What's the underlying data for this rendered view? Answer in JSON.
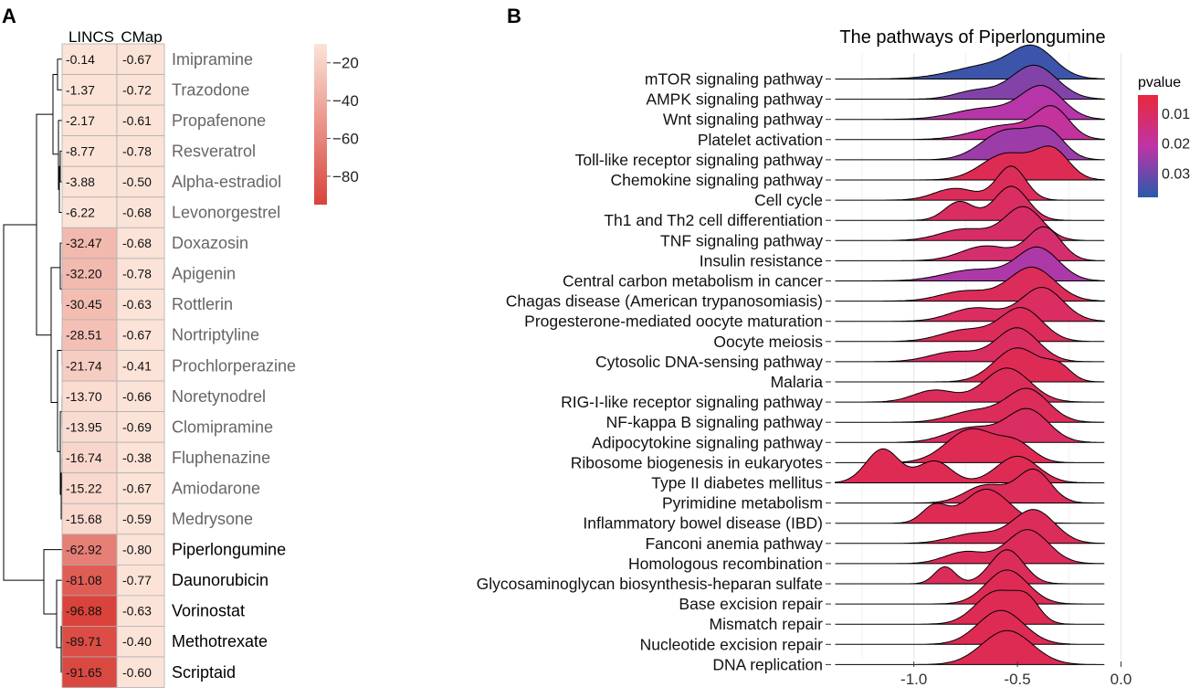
{
  "figure": {
    "panel_a_letter": "A",
    "panel_b_letter": "B",
    "colors": {
      "heat_low": "#fbe3d8",
      "heat_high": "#d9433b",
      "cell_border": "#b0b0b0",
      "drug_label_gray": "#666666",
      "drug_label_black": "#000000",
      "ridge_outline": "#000000",
      "grid": "#e8e8e8",
      "pval_low": "#e8293a",
      "pval_mid": "#bf33a8",
      "pval_high": "#2a5aaa"
    }
  },
  "chart_data": [
    {
      "type": "heatmap",
      "panel": "A",
      "columns": [
        "LINCS",
        "CMap"
      ],
      "rows": [
        "Imipramine",
        "Trazodone",
        "Propafenone",
        "Resveratrol",
        "Alpha-estradiol",
        "Levonorgestrel",
        "Doxazosin",
        "Apigenin",
        "Rottlerin",
        "Nortriptyline",
        "Prochlorperazine",
        "Noretynodrel",
        "Clomipramine",
        "Fluphenazine",
        "Amiodarone",
        "Medrysone",
        "Piperlongumine",
        "Daunorubicin",
        "Vorinostat",
        "Methotrexate",
        "Scriptaid"
      ],
      "values": [
        [
          -0.14,
          -0.67
        ],
        [
          -1.37,
          -0.72
        ],
        [
          -2.17,
          -0.61
        ],
        [
          -8.77,
          -0.78
        ],
        [
          -3.88,
          -0.5
        ],
        [
          -6.22,
          -0.68
        ],
        [
          -32.47,
          -0.68
        ],
        [
          -32.2,
          -0.78
        ],
        [
          -30.45,
          -0.63
        ],
        [
          -28.51,
          -0.67
        ],
        [
          -21.74,
          -0.41
        ],
        [
          -13.7,
          -0.66
        ],
        [
          -13.95,
          -0.69
        ],
        [
          -16.74,
          -0.38
        ],
        [
          -15.22,
          -0.67
        ],
        [
          -15.68,
          -0.59
        ],
        [
          -62.92,
          -0.8
        ],
        [
          -81.08,
          -0.77
        ],
        [
          -96.88,
          -0.63
        ],
        [
          -89.71,
          -0.4
        ],
        [
          -91.65,
          -0.6
        ]
      ],
      "value_labels": [
        [
          "-0.14",
          "-0.67"
        ],
        [
          "-1.37",
          "-0.72"
        ],
        [
          "-2.17",
          "-0.61"
        ],
        [
          "-8.77",
          "-0.78"
        ],
        [
          "-3.88",
          "-0.50"
        ],
        [
          "-6.22",
          "-0.68"
        ],
        [
          "-32.47",
          "-0.68"
        ],
        [
          "-32.20",
          "-0.78"
        ],
        [
          "-30.45",
          "-0.63"
        ],
        [
          "-28.51",
          "-0.67"
        ],
        [
          "-21.74",
          "-0.41"
        ],
        [
          "-13.70",
          "-0.66"
        ],
        [
          "-13.95",
          "-0.69"
        ],
        [
          "-16.74",
          "-0.38"
        ],
        [
          "-15.22",
          "-0.67"
        ],
        [
          "-15.68",
          "-0.59"
        ],
        [
          "-62.92",
          "-0.80"
        ],
        [
          "-81.08",
          "-0.77"
        ],
        [
          "-96.88",
          "-0.63"
        ],
        [
          "-89.71",
          "-0.40"
        ],
        [
          "-91.65",
          "-0.60"
        ]
      ],
      "highlighted_rows": [
        "Piperlongumine",
        "Daunorubicin",
        "Vorinostat",
        "Methotrexate",
        "Scriptaid"
      ],
      "colorbar": {
        "range": [
          -95,
          -10
        ],
        "ticks": [
          -20,
          -40,
          -60,
          -80
        ],
        "tick_labels": [
          "−20",
          "−40",
          "−60",
          "−80"
        ]
      },
      "dendrogram": "rows clustered (left side)"
    },
    {
      "type": "ridgeline",
      "panel": "B",
      "title": "The pathways of Piperlongumine",
      "xlim": [
        -1.4,
        0.02
      ],
      "xticks": [
        -1.0,
        -0.5,
        0.0
      ],
      "xtick_labels": [
        "-1.0",
        "-0.5",
        "0.0"
      ],
      "legend": {
        "title": "pvalue",
        "range": [
          0.004,
          0.038
        ],
        "ticks": [
          0.01,
          0.02,
          0.03
        ],
        "tick_labels": [
          "0.01",
          "0.02",
          "0.03"
        ],
        "position": "right"
      },
      "series": [
        {
          "name": "mTOR signaling pathway",
          "pvalue": 0.036,
          "peaks": [
            [
              -0.62,
              0.55,
              0.18
            ],
            [
              -0.42,
              1.0,
              0.1
            ]
          ]
        },
        {
          "name": "AMPK signaling pathway",
          "pvalue": 0.028,
          "peaks": [
            [
              -0.42,
              1.0,
              0.11
            ],
            [
              -0.7,
              0.25,
              0.1
            ]
          ]
        },
        {
          "name": "Wnt signaling pathway",
          "pvalue": 0.022,
          "peaks": [
            [
              -0.38,
              1.0,
              0.1
            ],
            [
              -0.65,
              0.35,
              0.15
            ]
          ]
        },
        {
          "name": "Platelet activation",
          "pvalue": 0.019,
          "peaks": [
            [
              -0.33,
              1.0,
              0.08
            ],
            [
              -0.55,
              0.5,
              0.15
            ]
          ]
        },
        {
          "name": "Toll-like receptor signaling pathway",
          "pvalue": 0.025,
          "peaks": [
            [
              -0.55,
              0.65,
              0.12
            ],
            [
              -0.35,
              0.55,
              0.08
            ]
          ]
        },
        {
          "name": "Chemokine signaling pathway",
          "pvalue": 0.008,
          "peaks": [
            [
              -0.55,
              0.75,
              0.12
            ],
            [
              -0.33,
              0.8,
              0.08
            ]
          ]
        },
        {
          "name": "Cell cycle",
          "pvalue": 0.009,
          "peaks": [
            [
              -0.53,
              1.0,
              0.07
            ],
            [
              -0.8,
              0.35,
              0.1
            ]
          ]
        },
        {
          "name": "Th1 and Th2 cell differentiation",
          "pvalue": 0.01,
          "peaks": [
            [
              -0.53,
              1.0,
              0.08
            ],
            [
              -0.78,
              0.55,
              0.07
            ]
          ]
        },
        {
          "name": "TNF signaling pathway",
          "pvalue": 0.011,
          "peaks": [
            [
              -0.47,
              1.0,
              0.09
            ],
            [
              -0.75,
              0.35,
              0.12
            ]
          ]
        },
        {
          "name": "Insulin resistance",
          "pvalue": 0.012,
          "peaks": [
            [
              -0.37,
              1.0,
              0.08
            ],
            [
              -0.65,
              0.45,
              0.12
            ]
          ]
        },
        {
          "name": "Central carbon metabolism in cancer",
          "pvalue": 0.023,
          "peaks": [
            [
              -0.4,
              1.0,
              0.1
            ],
            [
              -0.7,
              0.35,
              0.15
            ]
          ]
        },
        {
          "name": "Chagas disease (American trypanosomiasis)",
          "pvalue": 0.009,
          "peaks": [
            [
              -0.43,
              1.0,
              0.11
            ],
            [
              -0.75,
              0.3,
              0.12
            ]
          ]
        },
        {
          "name": "Progesterone-mediated oocyte maturation",
          "pvalue": 0.01,
          "peaks": [
            [
              -0.38,
              1.0,
              0.1
            ],
            [
              -0.7,
              0.4,
              0.12
            ]
          ]
        },
        {
          "name": "Oocyte meiosis",
          "pvalue": 0.009,
          "peaks": [
            [
              -0.48,
              1.0,
              0.1
            ],
            [
              -0.75,
              0.35,
              0.12
            ]
          ]
        },
        {
          "name": "Cytosolic DNA-sensing pathway",
          "pvalue": 0.01,
          "peaks": [
            [
              -0.5,
              1.0,
              0.1
            ],
            [
              -0.8,
              0.3,
              0.12
            ]
          ]
        },
        {
          "name": "Malaria",
          "pvalue": 0.008,
          "peaks": [
            [
              -0.5,
              1.0,
              0.11
            ],
            [
              -0.3,
              0.4,
              0.06
            ]
          ]
        },
        {
          "name": "RIG-I-like receptor signaling pathway",
          "pvalue": 0.009,
          "peaks": [
            [
              -0.55,
              1.0,
              0.11
            ],
            [
              -0.9,
              0.35,
              0.1
            ]
          ]
        },
        {
          "name": "NF-kappa B signaling pathway",
          "pvalue": 0.009,
          "peaks": [
            [
              -0.45,
              1.0,
              0.1
            ],
            [
              -0.7,
              0.35,
              0.12
            ]
          ]
        },
        {
          "name": "Adipocytokine signaling pathway",
          "pvalue": 0.01,
          "peaks": [
            [
              -0.45,
              1.0,
              0.1
            ],
            [
              -0.72,
              0.45,
              0.12
            ]
          ]
        },
        {
          "name": "Ribosome biogenesis in eukaryotes",
          "pvalue": 0.008,
          "peaks": [
            [
              -0.72,
              1.0,
              0.12
            ],
            [
              -0.5,
              0.5,
              0.08
            ]
          ]
        },
        {
          "name": "Type II diabetes mellitus",
          "pvalue": 0.008,
          "peaks": [
            [
              -1.15,
              0.7,
              0.08
            ],
            [
              -0.9,
              0.45,
              0.08
            ],
            [
              -0.5,
              0.55,
              0.1
            ]
          ]
        },
        {
          "name": "Pyrimidine metabolism",
          "pvalue": 0.009,
          "peaks": [
            [
              -0.42,
              1.0,
              0.08
            ],
            [
              -0.65,
              0.55,
              0.1
            ]
          ]
        },
        {
          "name": "Inflammatory bowel disease (IBD)",
          "pvalue": 0.008,
          "peaks": [
            [
              -0.65,
              1.0,
              0.11
            ],
            [
              -0.9,
              0.5,
              0.06
            ]
          ]
        },
        {
          "name": "Fanconi anemia pathway",
          "pvalue": 0.009,
          "peaks": [
            [
              -0.42,
              1.0,
              0.1
            ],
            [
              -0.7,
              0.3,
              0.12
            ]
          ]
        },
        {
          "name": "Homologous recombination",
          "pvalue": 0.009,
          "peaks": [
            [
              -0.45,
              1.0,
              0.1
            ],
            [
              -0.75,
              0.35,
              0.1
            ]
          ]
        },
        {
          "name": "Glycosaminoglycan biosynthesis-heparan sulfate",
          "pvalue": 0.009,
          "peaks": [
            [
              -0.55,
              1.0,
              0.08
            ],
            [
              -0.85,
              0.5,
              0.05
            ]
          ]
        },
        {
          "name": "Base excision repair",
          "pvalue": 0.008,
          "peaks": [
            [
              -0.55,
              1.0,
              0.1
            ]
          ]
        },
        {
          "name": "Mismatch repair",
          "pvalue": 0.008,
          "peaks": [
            [
              -0.6,
              1.0,
              0.1
            ],
            [
              -0.45,
              0.6,
              0.06
            ]
          ]
        },
        {
          "name": "Nucleotide excision repair",
          "pvalue": 0.008,
          "peaks": [
            [
              -0.58,
              1.0,
              0.11
            ]
          ]
        },
        {
          "name": "DNA replication",
          "pvalue": 0.008,
          "peaks": [
            [
              -0.55,
              1.0,
              0.12
            ]
          ]
        }
      ]
    }
  ]
}
